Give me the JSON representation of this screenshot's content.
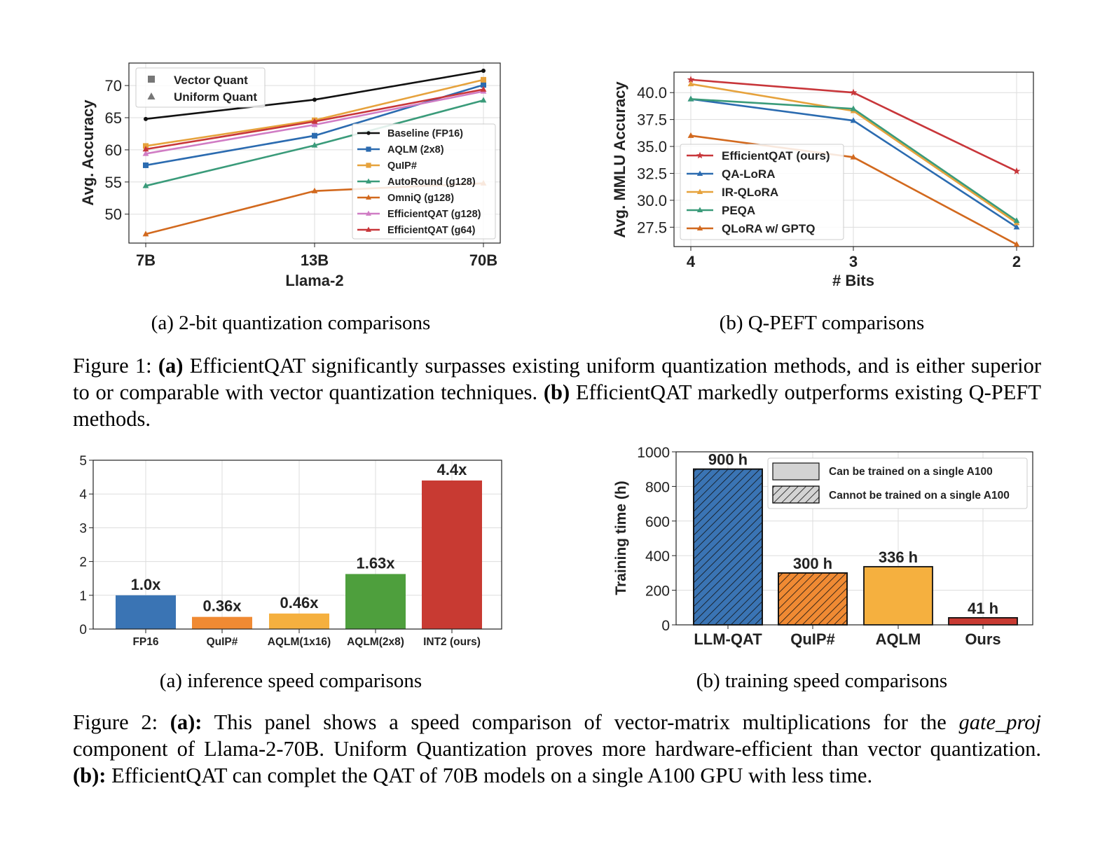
{
  "figure1": {
    "caption": {
      "label": "Figure 1:",
      "a_tag": "(a)",
      "a_text": "EfficientQAT significantly surpasses existing uniform quantization methods, and is either superior to or comparable with vector quantization techniques.",
      "b_tag": "(b)",
      "b_text": "EfficientQAT markedly outperforms existing Q-PEFT methods."
    },
    "panel_a_caption": "(a) 2-bit quantization comparisons",
    "panel_b_caption": "(b) Q-PEFT comparisons"
  },
  "figure2": {
    "caption": {
      "label": "Figure 2:",
      "a_tag": "(a):",
      "a_text_1": "This panel shows a speed comparison of vector-matrix multiplications for the",
      "a_italic": "gate_proj",
      "a_text_2": "component of Llama-2-70B. Uniform Quantization proves more hardware-efficient than vector quantization.",
      "b_tag": "(b):",
      "b_text": "EfficientQAT can complet the QAT of 70B models on a single A100 GPU with less time."
    },
    "panel_a_caption": "(a) inference speed comparisons",
    "panel_b_caption": "(b) training speed comparisons"
  },
  "colors": {
    "black": "#111111",
    "blue": "#2b6bb0",
    "orange": "#e08b25",
    "gold": "#e6a23c",
    "green": "#3a9b7a",
    "darkorange": "#d2691e",
    "pink": "#d07cc4",
    "red": "#c8363a",
    "bar_blue": "#3a74b4",
    "bar_orange": "#f08a33",
    "bar_gold": "#f5b03f",
    "bar_green": "#4e9f3d",
    "bar_red": "#c83a32"
  },
  "chart_data": [
    {
      "id": "fig1a",
      "type": "line",
      "title": "",
      "xlabel": "Llama-2",
      "ylabel": "Avg. Accuracy",
      "categories": [
        "7B",
        "13B",
        "70B"
      ],
      "ylim": [
        45.5,
        73.5
      ],
      "yticks": [
        50,
        55,
        60,
        65,
        70
      ],
      "grid": true,
      "legend_marker_type": {
        "vector": "Vector Quant",
        "uniform": "Uniform Quant"
      },
      "legend_placement": "lower-right",
      "series": [
        {
          "name": "Baseline (FP16)",
          "color": "#111111",
          "marker": "dot",
          "values": [
            64.8,
            67.8,
            72.3
          ]
        },
        {
          "name": "AQLM (2x8)",
          "color": "#2b6bb0",
          "marker": "square",
          "values": [
            57.6,
            62.2,
            70.1
          ]
        },
        {
          "name": "QuIP#",
          "color": "#e6a23c",
          "marker": "square",
          "values": [
            60.6,
            64.6,
            70.9
          ]
        },
        {
          "name": "AutoRound (g128)",
          "color": "#3a9b7a",
          "marker": "triangle",
          "values": [
            54.4,
            60.7,
            67.7
          ]
        },
        {
          "name": "OmniQ (g128)",
          "color": "#d2691e",
          "marker": "triangle",
          "values": [
            46.9,
            53.6,
            54.8
          ]
        },
        {
          "name": "EfficientQAT (g128)",
          "color": "#d07cc4",
          "marker": "triangle",
          "values": [
            59.4,
            63.9,
            69.1
          ]
        },
        {
          "name": "EfficientQAT (g64)",
          "color": "#c8363a",
          "marker": "triangle",
          "values": [
            60.1,
            64.4,
            69.4
          ]
        }
      ]
    },
    {
      "id": "fig1b",
      "type": "line",
      "title": "",
      "xlabel": "# Bits",
      "ylabel": "Avg. MMLU Accuracy",
      "categories": [
        "4",
        "3",
        "2"
      ],
      "ylim": [
        25.7,
        41.9
      ],
      "yticks": [
        "27.5",
        "30.0",
        "32.5",
        "35.0",
        "37.5",
        "40.0"
      ],
      "grid": true,
      "legend_placement": "lower-left",
      "series": [
        {
          "name": "EfficientQAT (ours)",
          "color": "#c8363a",
          "marker": "star",
          "values": [
            41.2,
            40.0,
            32.7
          ]
        },
        {
          "name": "QA-LoRA",
          "color": "#2b6bb0",
          "marker": "triangle",
          "values": [
            39.4,
            37.4,
            27.5
          ]
        },
        {
          "name": "IR-QLoRA",
          "color": "#e6a23c",
          "marker": "triangle",
          "values": [
            40.8,
            38.3,
            27.9
          ]
        },
        {
          "name": "PEQA",
          "color": "#3a9b7a",
          "marker": "triangle",
          "values": [
            39.4,
            38.5,
            28.1
          ]
        },
        {
          "name": "QLoRA w/ GPTQ",
          "color": "#d2691e",
          "marker": "triangle",
          "values": [
            36.0,
            34.0,
            25.9
          ]
        }
      ]
    },
    {
      "id": "fig2a",
      "type": "bar",
      "title": "",
      "xlabel": "",
      "ylabel": "",
      "categories": [
        "FP16",
        "QuIP#",
        "AQLM(1x16)",
        "AQLM(2x8)",
        "INT2 (ours)"
      ],
      "values": [
        1.0,
        0.36,
        0.46,
        1.63,
        4.4
      ],
      "data_labels": [
        "1.0x",
        "0.36x",
        "0.46x",
        "1.63x",
        "4.4x"
      ],
      "colors": [
        "#3a74b4",
        "#f08a33",
        "#f5b03f",
        "#4e9f3d",
        "#c83a32"
      ],
      "ylim": [
        0,
        5
      ],
      "yticks": [
        "0",
        "1",
        "2",
        "3",
        "4",
        "5"
      ],
      "grid": true
    },
    {
      "id": "fig2b",
      "type": "bar",
      "title": "",
      "xlabel": "",
      "ylabel": "Training time (h)",
      "categories": [
        "LLM-QAT",
        "QuIP#",
        "AQLM",
        "Ours"
      ],
      "values": [
        900,
        300,
        336,
        41
      ],
      "data_labels": [
        "900 h",
        "300 h",
        "336 h",
        "41 h"
      ],
      "colors": [
        "#3a74b4",
        "#f08a33",
        "#f5b03f",
        "#c83a32"
      ],
      "hatched": [
        true,
        true,
        false,
        false
      ],
      "ylim": [
        0,
        1000
      ],
      "yticks": [
        "0",
        "200",
        "400",
        "600",
        "800",
        "1000"
      ],
      "grid": true,
      "legend_placement": "top-right",
      "legend": [
        "Can be trained on a single A100",
        "Cannot be trained on a single A100"
      ]
    }
  ]
}
